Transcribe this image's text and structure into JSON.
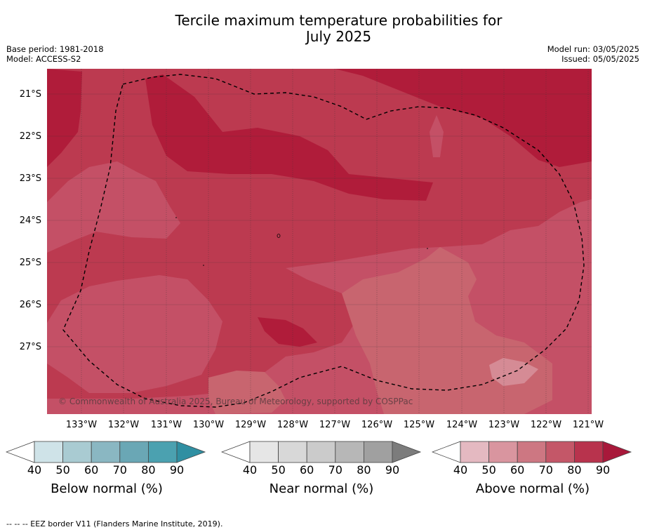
{
  "title_line1": "Tercile maximum temperature probabilities for",
  "title_line2": "July 2025",
  "meta_left": {
    "base_period": "Base period: 1981-2018",
    "model": "Model: ACCESS-S2"
  },
  "meta_right": {
    "model_run": "Model run: 03/05/2025",
    "issued": "Issued: 05/05/2025"
  },
  "copyright": "© Commonwealth of Australia 2025, Bureau of Meteorology, supported by COSPPac",
  "lat_labels": [
    "21°S",
    "22°S",
    "23°S",
    "24°S",
    "25°S",
    "26°S",
    "27°S"
  ],
  "lon_labels": [
    "133°W",
    "132°W",
    "131°W",
    "130°W",
    "129°W",
    "128°W",
    "127°W",
    "126°W",
    "125°W",
    "124°W",
    "123°W",
    "122°W",
    "121°W"
  ],
  "colorbars": [
    {
      "label": "Below normal (%)",
      "ticks": [
        "40",
        "50",
        "60",
        "70",
        "80",
        "90"
      ],
      "colors": [
        "#cfe3e8",
        "#a9cbd2",
        "#8ab7c2",
        "#6aa7b5",
        "#4ba1b0"
      ],
      "extend_color": "#2f8fa2"
    },
    {
      "label": "Near normal (%)",
      "ticks": [
        "40",
        "50",
        "60",
        "70",
        "80",
        "90"
      ],
      "colors": [
        "#e6e6e6",
        "#d8d8d8",
        "#cbcbcb",
        "#b7b7b7",
        "#a0a0a0"
      ],
      "extend_color": "#7c7c7c"
    },
    {
      "label": "Above normal (%)",
      "ticks": [
        "40",
        "50",
        "60",
        "70",
        "80",
        "90"
      ],
      "colors": [
        "#e4b9c1",
        "#d9959f",
        "#cd7782",
        "#c45768",
        "#b8334d"
      ],
      "extend_color": "#a8183a"
    }
  ],
  "footnote": "--  --  -- EEZ border V11 (Flanders Marine Institute, 2019).",
  "map_colors": {
    "p80_90": "#b01c3a",
    "p70_80": "#bc3a50",
    "p60_70": "#c45066",
    "p50_60": "#c8656f",
    "p40_50": "#d58b95"
  }
}
